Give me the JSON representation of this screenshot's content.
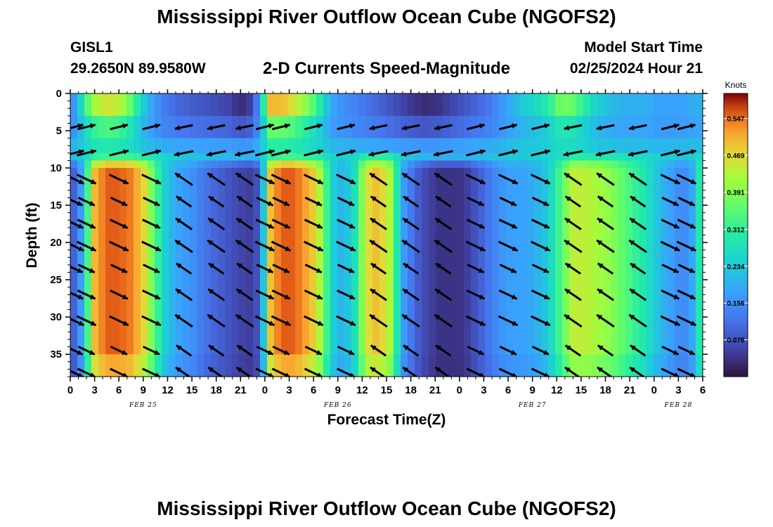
{
  "header": {
    "title": "Mississippi River Outflow Ocean Cube (NGOFS2)",
    "station_id": "GISL1",
    "station_coords": "29.2650N  89.9580W",
    "chart_title": "2-D Currents Speed-Magnitude",
    "model_start_label": "Model Start Time",
    "model_start_value": "02/25/2024 Hour 21"
  },
  "footer": {
    "title": "Mississippi River Outflow Ocean Cube (NGOFS2)"
  },
  "chart_data": {
    "type": "heatmap",
    "title": "2-D Currents Speed-Magnitude",
    "xlabel": "Forecast Time(Z)",
    "ylabel": "Depth (ft)",
    "x_unit": "hours from 00Z FEB 25",
    "xlim": [
      0,
      78
    ],
    "ylim": [
      38,
      0
    ],
    "x_tick_labels": [
      "0",
      "3",
      "6",
      "9",
      "12",
      "15",
      "18",
      "21",
      "0",
      "3",
      "6",
      "9",
      "12",
      "15",
      "18",
      "21",
      "0",
      "3",
      "6",
      "9",
      "12",
      "15",
      "18",
      "21",
      "0",
      "3",
      "6"
    ],
    "y_ticks": [
      0,
      5,
      10,
      15,
      20,
      25,
      30,
      35
    ],
    "date_labels": [
      {
        "text": "FEB 25",
        "hour": 9
      },
      {
        "text": "FEB 26",
        "hour": 33
      },
      {
        "text": "FEB 27",
        "hour": 57
      },
      {
        "text": "FEB 28",
        "hour": 75
      }
    ],
    "colorbar": {
      "title": "Knots",
      "min": 0.0,
      "max": 0.6,
      "tick_values": [
        0.078,
        0.156,
        0.234,
        0.312,
        0.391,
        0.469,
        0.547
      ],
      "tick_labels": [
        "0.078",
        "0.156",
        "0.234",
        "0.312",
        "0.391",
        "0.469",
        "0.547"
      ]
    },
    "speed_profile": {
      "hours": [
        0,
        1,
        2,
        3,
        4.5,
        6,
        7.5,
        9,
        10.5,
        12,
        13.5,
        15,
        16.5,
        18,
        19.5,
        21,
        22.5,
        23.5,
        24.5,
        26,
        27.5,
        29,
        30.5,
        31.5,
        32.5,
        33.5,
        35,
        36.5,
        38,
        39.5,
        41,
        42.5,
        44,
        45.5,
        47,
        48.5,
        50,
        51.5,
        53,
        54.5,
        56,
        57.5,
        59,
        60.5,
        62,
        63.5,
        65,
        66.5,
        68,
        69.5,
        71,
        72.5,
        74,
        75.5,
        77,
        78
      ],
      "surface": [
        0.12,
        0.22,
        0.34,
        0.42,
        0.46,
        0.44,
        0.36,
        0.24,
        0.16,
        0.12,
        0.1,
        0.09,
        0.08,
        0.07,
        0.06,
        0.03,
        0.06,
        0.2,
        0.5,
        0.5,
        0.46,
        0.4,
        0.32,
        0.24,
        0.18,
        0.16,
        0.14,
        0.12,
        0.1,
        0.08,
        0.06,
        0.04,
        0.03,
        0.04,
        0.06,
        0.08,
        0.1,
        0.12,
        0.16,
        0.2,
        0.24,
        0.26,
        0.3,
        0.38,
        0.36,
        0.3,
        0.24,
        0.22,
        0.2,
        0.2,
        0.2,
        0.18,
        0.18,
        0.18,
        0.2,
        0.2
      ],
      "deep": [
        0.08,
        0.12,
        0.3,
        0.5,
        0.56,
        0.56,
        0.54,
        0.48,
        0.34,
        0.22,
        0.18,
        0.16,
        0.12,
        0.1,
        0.08,
        0.06,
        0.05,
        0.1,
        0.48,
        0.56,
        0.56,
        0.52,
        0.46,
        0.34,
        0.24,
        0.2,
        0.26,
        0.46,
        0.5,
        0.42,
        0.18,
        0.1,
        0.06,
        0.04,
        0.04,
        0.04,
        0.08,
        0.12,
        0.16,
        0.18,
        0.18,
        0.2,
        0.24,
        0.34,
        0.44,
        0.44,
        0.42,
        0.4,
        0.36,
        0.32,
        0.28,
        0.22,
        0.18,
        0.14,
        0.2,
        0.36
      ]
    },
    "vector_hours": [
      0.5,
      2,
      6,
      10,
      14,
      18,
      21.5,
      24,
      26,
      30,
      34,
      38,
      42,
      46,
      50,
      54,
      58,
      62,
      66,
      70,
      74,
      76
    ],
    "vector_depths": [
      4.5,
      8,
      11.5,
      14.5,
      17.5,
      20.5,
      23.5,
      27,
      30.5,
      34.5,
      37.5
    ]
  }
}
